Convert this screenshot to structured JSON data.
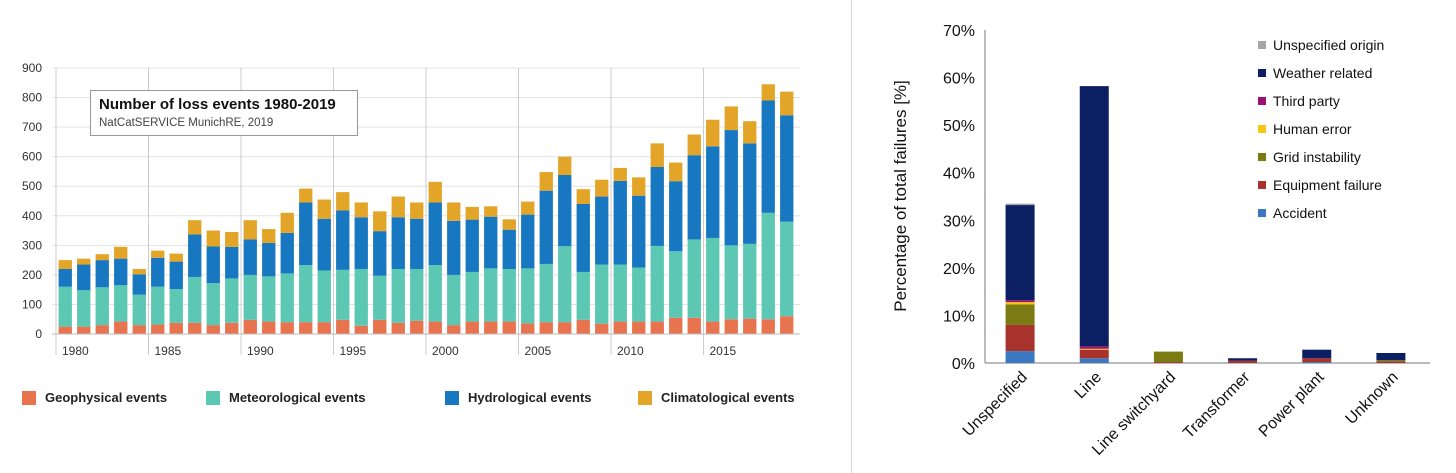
{
  "chart_data": [
    {
      "type": "bar",
      "stacked": true,
      "title": "Number of loss events 1980-2019",
      "subtitle": "NatCatSERVICE MunichRE, 2019",
      "xlabel": "",
      "ylabel": "",
      "ylim": [
        0,
        900
      ],
      "yticks": [
        0,
        100,
        200,
        300,
        400,
        500,
        600,
        700,
        800,
        900
      ],
      "xtick_labels": [
        "1980",
        "1985",
        "1990",
        "1995",
        "2000",
        "2005",
        "2010",
        "2015"
      ],
      "categories": [
        1980,
        1981,
        1982,
        1983,
        1984,
        1985,
        1986,
        1987,
        1988,
        1989,
        1990,
        1991,
        1992,
        1993,
        1994,
        1995,
        1996,
        1997,
        1998,
        1999,
        2000,
        2001,
        2002,
        2003,
        2004,
        2005,
        2006,
        2007,
        2008,
        2009,
        2010,
        2011,
        2012,
        2013,
        2014,
        2015,
        2016,
        2017,
        2018,
        2019
      ],
      "legend_position": "bottom",
      "series": [
        {
          "name": "Geophysical events",
          "color": "#e8734f",
          "values": [
            25,
            25,
            30,
            42,
            30,
            32,
            38,
            38,
            30,
            38,
            48,
            42,
            40,
            40,
            40,
            48,
            28,
            48,
            38,
            45,
            42,
            30,
            42,
            42,
            42,
            36,
            40,
            40,
            48,
            35,
            42,
            42,
            42,
            55,
            55,
            42,
            50,
            52,
            50,
            60
          ]
        },
        {
          "name": "Meteorological events",
          "color": "#5cc8b4",
          "values": [
            135,
            123,
            128,
            123,
            103,
            128,
            114,
            155,
            142,
            150,
            152,
            153,
            165,
            193,
            175,
            169,
            192,
            149,
            182,
            175,
            191,
            170,
            168,
            180,
            178,
            186,
            197,
            257,
            162,
            200,
            193,
            183,
            256,
            225,
            265,
            283,
            250,
            253,
            360,
            320
          ]
        },
        {
          "name": "Hydrological events",
          "color": "#1777c0",
          "values": [
            60,
            87,
            92,
            90,
            69,
            98,
            93,
            144,
            124,
            107,
            120,
            113,
            137,
            212,
            175,
            201,
            175,
            151,
            175,
            170,
            212,
            183,
            177,
            175,
            133,
            182,
            248,
            241,
            230,
            230,
            283,
            243,
            267,
            237,
            285,
            310,
            390,
            340,
            380,
            360
          ]
        },
        {
          "name": "Climatological events",
          "color": "#e3a528",
          "values": [
            30,
            20,
            20,
            40,
            18,
            24,
            27,
            48,
            54,
            50,
            65,
            47,
            68,
            47,
            65,
            62,
            50,
            67,
            70,
            55,
            70,
            62,
            43,
            35,
            35,
            44,
            63,
            62,
            50,
            57,
            44,
            62,
            80,
            63,
            70,
            90,
            80,
            75,
            55,
            80
          ]
        }
      ]
    },
    {
      "type": "bar",
      "stacked": true,
      "title": "",
      "xlabel": "",
      "ylabel": "Percentage of total failures [%]",
      "ylim": [
        0,
        70
      ],
      "yticks": [
        "0%",
        "10%",
        "20%",
        "30%",
        "40%",
        "50%",
        "60%",
        "70%"
      ],
      "categories": [
        "Unspecified",
        "Line",
        "Line switchyard",
        "Transformer",
        "Power plant",
        "Unknown"
      ],
      "legend_position": "top-right",
      "series": [
        {
          "name": "Accident",
          "color": "#3a78c2",
          "values": [
            2.5,
            1.0,
            0,
            0,
            0.2,
            0
          ]
        },
        {
          "name": "Equipment failure",
          "color": "#a7332c",
          "values": [
            5.5,
            1.8,
            0.2,
            0.5,
            0.8,
            0.3
          ]
        },
        {
          "name": "Grid instability",
          "color": "#7a7b12",
          "values": [
            4.3,
            0,
            2.2,
            0,
            0,
            0.3
          ]
        },
        {
          "name": "Human error",
          "color": "#f5c518",
          "values": [
            0.5,
            0.2,
            0,
            0,
            0,
            0
          ]
        },
        {
          "name": "Third party",
          "color": "#9b1070",
          "values": [
            0.4,
            0.5,
            0,
            0,
            0,
            0
          ]
        },
        {
          "name": "Weather related",
          "color": "#0c1f63",
          "values": [
            20.0,
            54.7,
            0,
            0.5,
            1.8,
            1.5
          ]
        },
        {
          "name": "Unspecified origin",
          "color": "#a6a6a6",
          "values": [
            0.3,
            0,
            0,
            0,
            0,
            0
          ]
        }
      ]
    }
  ]
}
